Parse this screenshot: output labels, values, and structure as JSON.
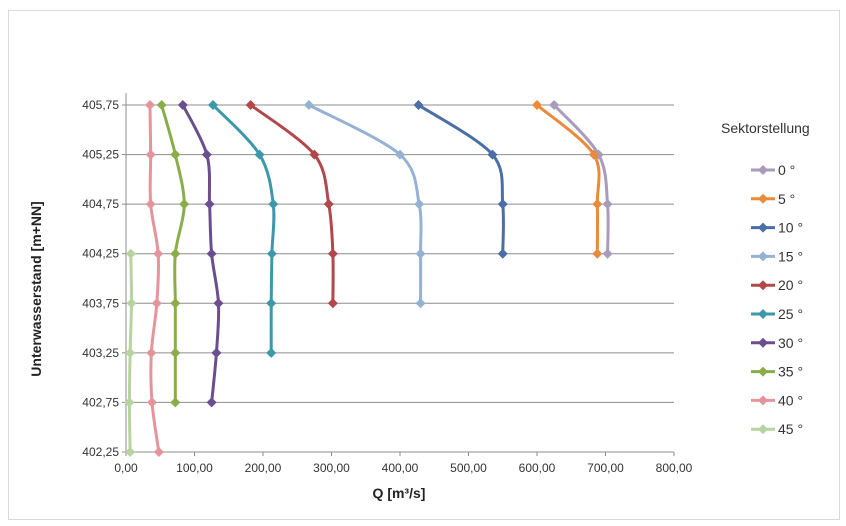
{
  "chart_data": {
    "type": "line",
    "title": "",
    "xlabel": "Q [m³/s]",
    "ylabel": "Unterwasserstand [m+NN]",
    "xlim": [
      0,
      800
    ],
    "ylim": [
      402.25,
      405.75
    ],
    "x_ticks": [
      "0,00",
      "100,00",
      "200,00",
      "300,00",
      "400,00",
      "500,00",
      "600,00",
      "700,00",
      "800,00"
    ],
    "y_ticks": [
      "402,25",
      "402,75",
      "403,25",
      "403,75",
      "404,25",
      "404,75",
      "405,25",
      "405,75"
    ],
    "grid": "horizontal",
    "legend_title": "Sektorstellung",
    "legend_position": "right",
    "series": [
      {
        "name": "0 °",
        "color": "#a99bbd",
        "points": [
          [
            625,
            405.75
          ],
          [
            690,
            405.25
          ],
          [
            703,
            404.75
          ],
          [
            703,
            404.25
          ]
        ]
      },
      {
        "name": "5 °",
        "color": "#e98a3c",
        "points": [
          [
            600,
            405.75
          ],
          [
            683,
            405.25
          ],
          [
            688,
            404.75
          ],
          [
            688,
            404.25
          ]
        ]
      },
      {
        "name": "10 °",
        "color": "#4a6ea6",
        "points": [
          [
            427,
            405.75
          ],
          [
            535,
            405.25
          ],
          [
            550,
            404.75
          ],
          [
            550,
            404.25
          ]
        ]
      },
      {
        "name": "15 °",
        "color": "#95b1d4",
        "points": [
          [
            267,
            405.75
          ],
          [
            400,
            405.25
          ],
          [
            428,
            404.75
          ],
          [
            430,
            404.25
          ],
          [
            430,
            403.75
          ]
        ]
      },
      {
        "name": "20 °",
        "color": "#b0484c",
        "points": [
          [
            182,
            405.75
          ],
          [
            275,
            405.25
          ],
          [
            296,
            404.75
          ],
          [
            302,
            404.25
          ],
          [
            302,
            403.75
          ]
        ]
      },
      {
        "name": "25 °",
        "color": "#3c98aa",
        "points": [
          [
            127,
            405.75
          ],
          [
            195,
            405.25
          ],
          [
            215,
            404.75
          ],
          [
            213,
            404.25
          ],
          [
            212,
            403.75
          ],
          [
            212,
            403.25
          ]
        ]
      },
      {
        "name": "30 °",
        "color": "#6b4e8e",
        "points": [
          [
            83,
            405.75
          ],
          [
            118,
            405.25
          ],
          [
            122,
            404.75
          ],
          [
            125,
            404.25
          ],
          [
            135,
            403.75
          ],
          [
            132,
            403.25
          ],
          [
            125,
            402.75
          ]
        ]
      },
      {
        "name": "35 °",
        "color": "#8aad4a",
        "points": [
          [
            52,
            405.75
          ],
          [
            72,
            405.25
          ],
          [
            85,
            404.75
          ],
          [
            72,
            404.25
          ],
          [
            72,
            403.75
          ],
          [
            72,
            403.25
          ],
          [
            72,
            402.75
          ]
        ]
      },
      {
        "name": "40 °",
        "color": "#e3959b",
        "points": [
          [
            35,
            405.75
          ],
          [
            36,
            405.25
          ],
          [
            36,
            404.75
          ],
          [
            47,
            404.25
          ],
          [
            45,
            403.75
          ],
          [
            37,
            403.25
          ],
          [
            38,
            402.75
          ],
          [
            48,
            402.25
          ]
        ]
      },
      {
        "name": "45 °",
        "color": "#b7d3a0",
        "points": [
          [
            7,
            404.25
          ],
          [
            8,
            403.75
          ],
          [
            6,
            403.25
          ],
          [
            5,
            402.75
          ],
          [
            6,
            402.25
          ]
        ]
      }
    ]
  }
}
